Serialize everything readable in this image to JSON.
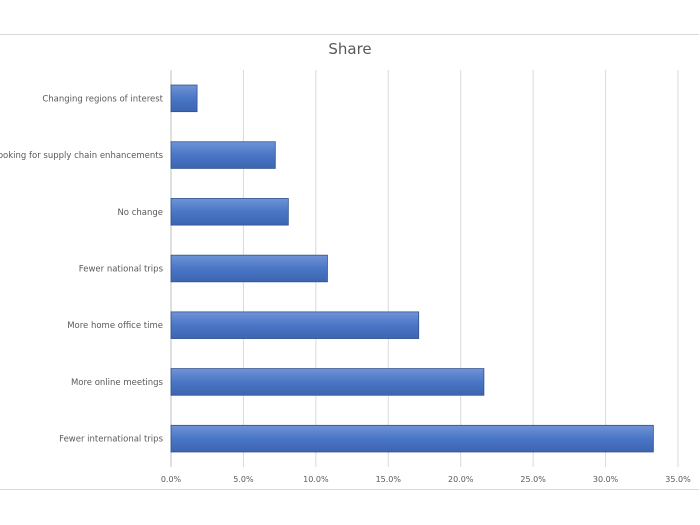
{
  "chart_data": {
    "type": "bar",
    "orientation": "horizontal",
    "title": "Share",
    "xlabel": "",
    "ylabel": "",
    "categories": [
      "Changing regions of interest",
      "Looking for supply chain enhancements",
      "No change",
      "Fewer national trips",
      "More home office time",
      "More online meetings",
      "Fewer international trips"
    ],
    "values": [
      1.8,
      7.2,
      8.1,
      10.8,
      17.1,
      21.6,
      33.3
    ],
    "xlim": [
      0,
      35
    ],
    "x_ticks": [
      "0.0%",
      "5.0%",
      "10.0%",
      "15.0%",
      "20.0%",
      "25.0%",
      "30.0%",
      "35.0%"
    ],
    "grid": "vertical",
    "legend": "none",
    "bar_color": "#4472c4"
  }
}
